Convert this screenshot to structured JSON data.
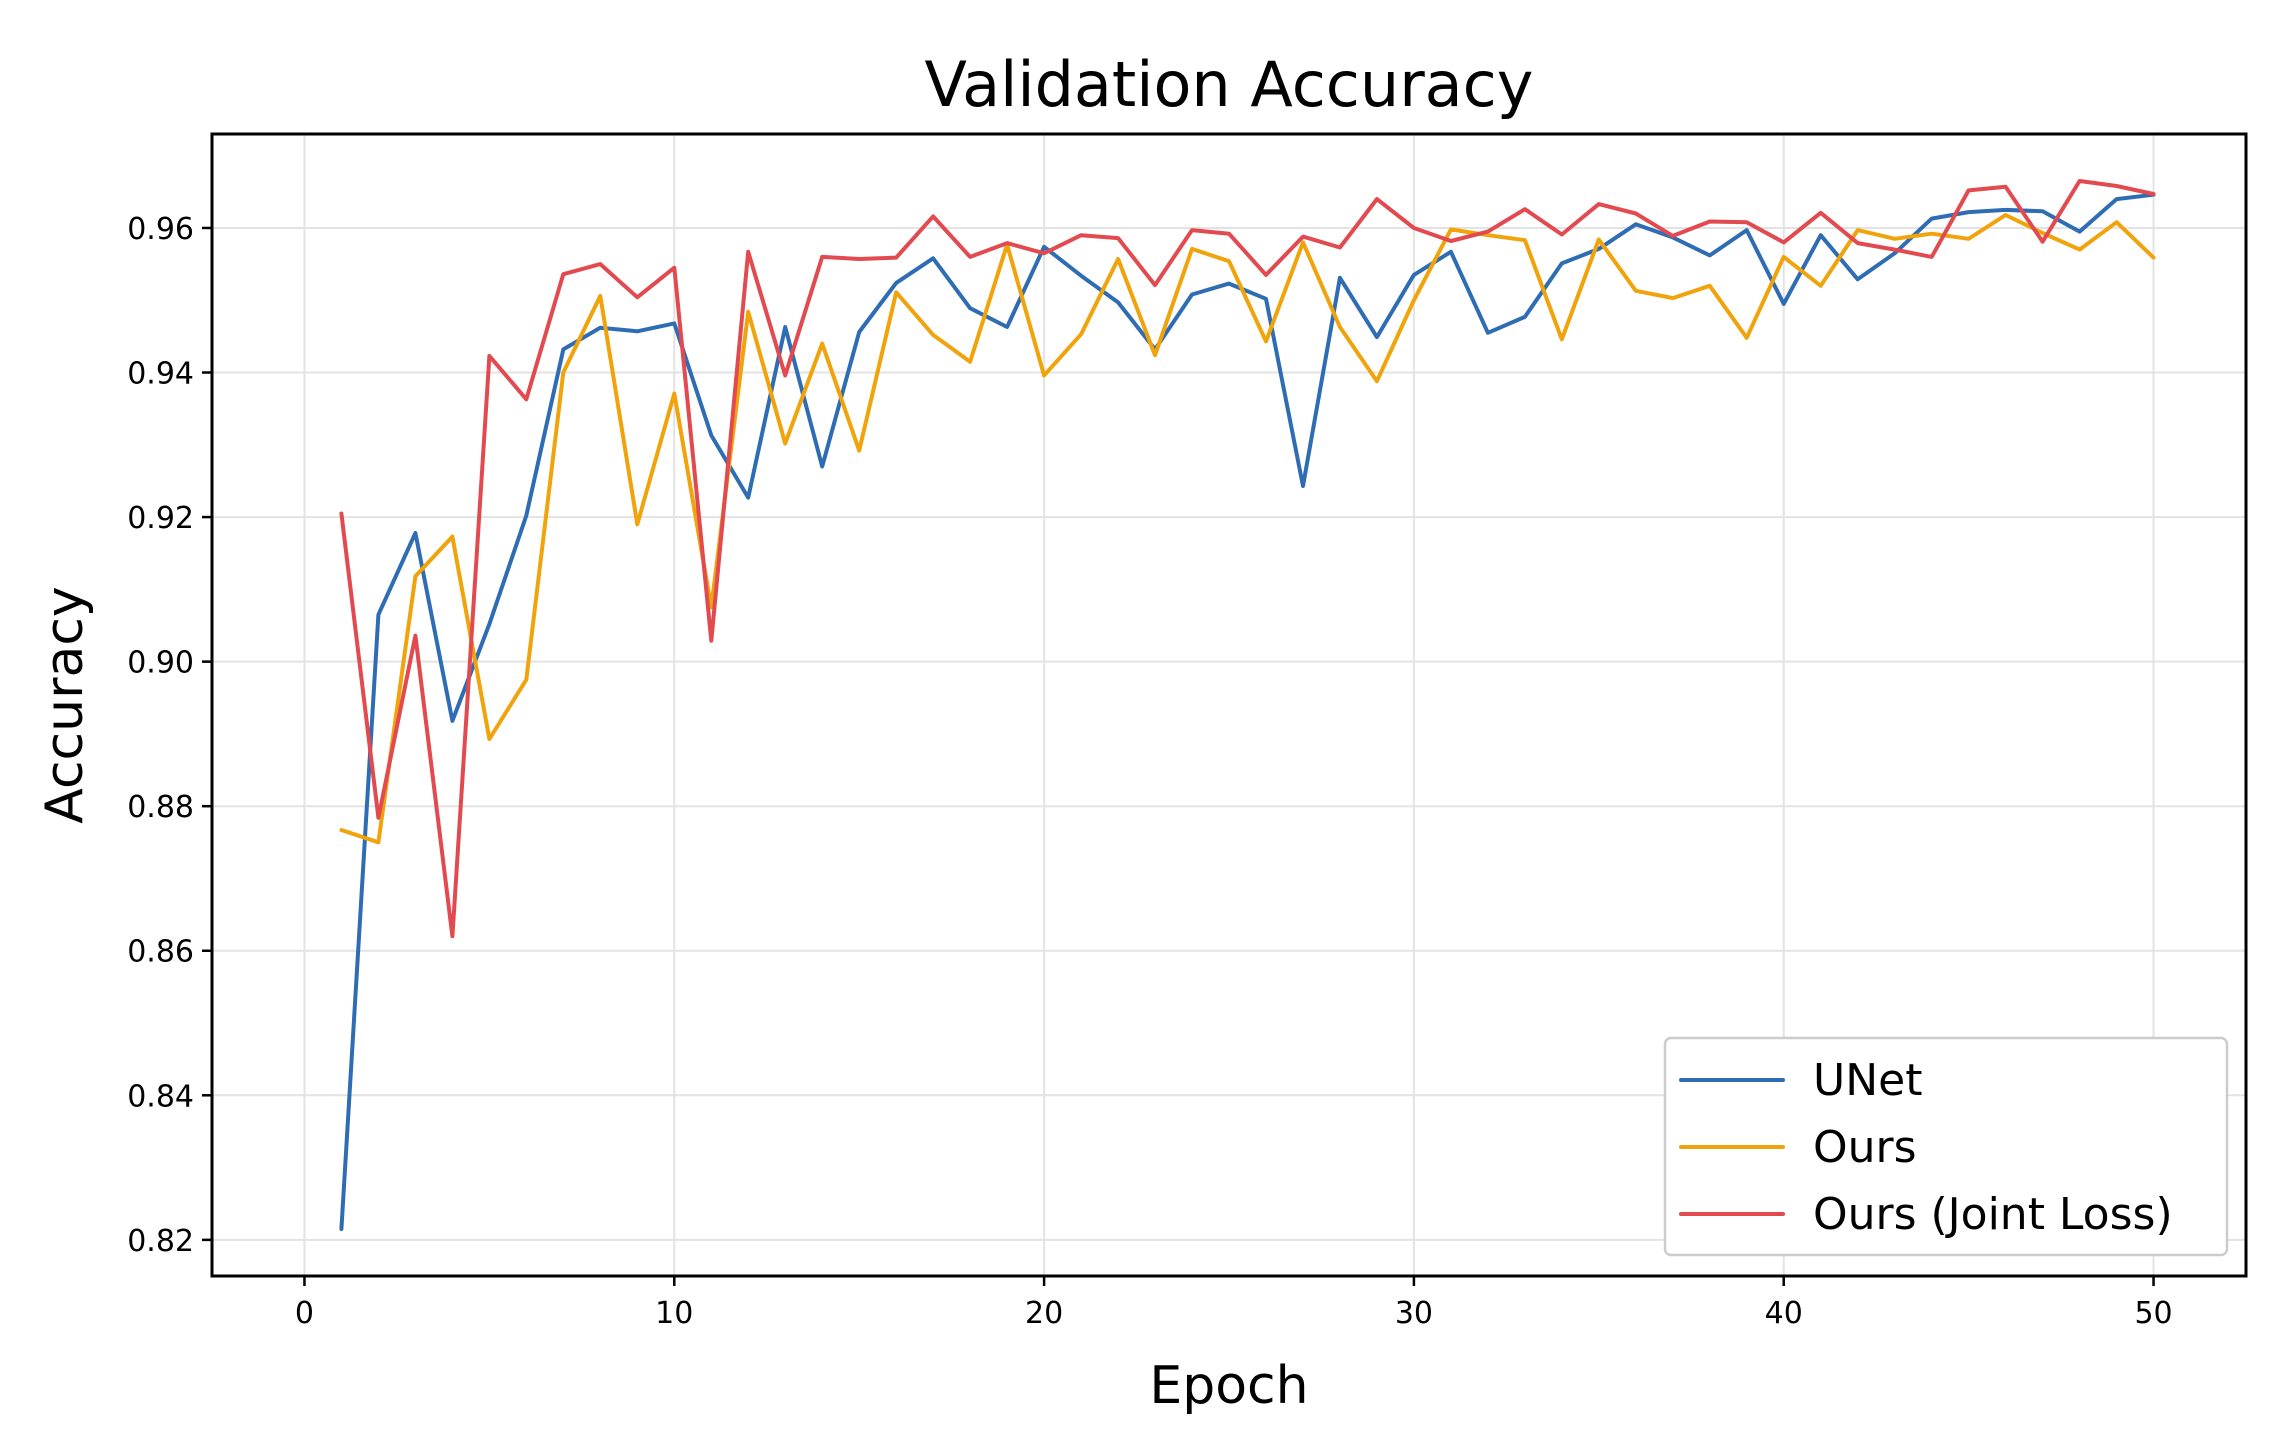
{
  "chart_data": {
    "type": "line",
    "title": "Validation Accuracy",
    "xlabel": "Epoch",
    "ylabel": "Accuracy",
    "xlim": [
      -2.5,
      52.5
    ],
    "ylim": [
      0.815,
      0.973
    ],
    "xticks": [
      0,
      10,
      20,
      30,
      40,
      50
    ],
    "yticks": [
      0.82,
      0.84,
      0.86,
      0.88,
      0.9,
      0.92,
      0.94,
      0.96
    ],
    "xtick_labels": [
      "0",
      "10",
      "20",
      "30",
      "40",
      "50"
    ],
    "ytick_labels": [
      "0.82",
      "0.84",
      "0.86",
      "0.88",
      "0.90",
      "0.92",
      "0.94",
      "0.96"
    ],
    "grid": true,
    "legend_position": "bottom-right",
    "x": [
      1,
      2,
      3,
      4,
      5,
      6,
      7,
      8,
      9,
      10,
      11,
      12,
      13,
      14,
      15,
      16,
      17,
      18,
      19,
      20,
      21,
      22,
      23,
      24,
      25,
      26,
      27,
      28,
      29,
      30,
      31,
      32,
      33,
      34,
      35,
      36,
      37,
      38,
      39,
      40,
      41,
      42,
      43,
      44,
      45,
      46,
      47,
      48,
      49,
      50
    ],
    "series": [
      {
        "name": "UNet",
        "color": "#2e6db4",
        "values": [
          0.8215,
          0.9065,
          0.9178,
          0.8918,
          0.9052,
          0.9202,
          0.9432,
          0.9462,
          0.9457,
          0.9468,
          0.9313,
          0.9227,
          0.9463,
          0.927,
          0.9456,
          0.9524,
          0.9558,
          0.9489,
          0.9463,
          0.9574,
          0.9534,
          0.9497,
          0.9432,
          0.9508,
          0.9523,
          0.9502,
          0.9243,
          0.9531,
          0.9449,
          0.9535,
          0.9567,
          0.9455,
          0.9477,
          0.9551,
          0.9571,
          0.9605,
          0.9587,
          0.9562,
          0.9597,
          0.9495,
          0.959,
          0.9529,
          0.9565,
          0.9613,
          0.9622,
          0.9625,
          0.9623,
          0.9595,
          0.964,
          0.9646
        ]
      },
      {
        "name": "Ours",
        "color": "#f0a30a",
        "values": [
          0.8767,
          0.875,
          0.9118,
          0.9173,
          0.8893,
          0.8975,
          0.94,
          0.9506,
          0.919,
          0.9371,
          0.9075,
          0.9484,
          0.9302,
          0.944,
          0.9292,
          0.9511,
          0.9452,
          0.9415,
          0.9577,
          0.9396,
          0.9453,
          0.9557,
          0.9424,
          0.9571,
          0.9554,
          0.9443,
          0.958,
          0.9463,
          0.9388,
          0.95,
          0.9598,
          0.959,
          0.9583,
          0.9446,
          0.9584,
          0.9513,
          0.9503,
          0.952,
          0.9448,
          0.956,
          0.952,
          0.9597,
          0.9585,
          0.9592,
          0.9585,
          0.9618,
          0.9593,
          0.957,
          0.9608,
          0.9559
        ]
      },
      {
        "name": "Ours (Joint Loss)",
        "color": "#e24a4f",
        "values": [
          0.9205,
          0.8784,
          0.9036,
          0.862,
          0.9423,
          0.9363,
          0.9536,
          0.955,
          0.9504,
          0.9545,
          0.9029,
          0.9567,
          0.9396,
          0.956,
          0.9557,
          0.9559,
          0.9616,
          0.956,
          0.9579,
          0.9565,
          0.959,
          0.9586,
          0.9521,
          0.9597,
          0.9592,
          0.9535,
          0.9588,
          0.9573,
          0.964,
          0.96,
          0.9582,
          0.9595,
          0.9626,
          0.9591,
          0.9633,
          0.962,
          0.9589,
          0.9609,
          0.9608,
          0.958,
          0.9621,
          0.9579,
          0.957,
          0.956,
          0.9652,
          0.9657,
          0.9581,
          0.9665,
          0.9658,
          0.9647
        ]
      }
    ]
  }
}
